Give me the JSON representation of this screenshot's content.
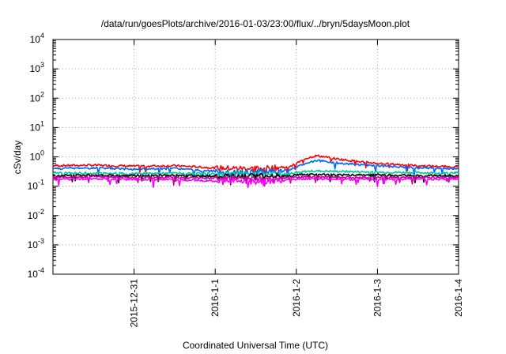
{
  "chart_data": {
    "type": "line",
    "title": "/data/run/goesPlots/archive/2016-01-03/23:00/flux/../bryn/5daysMoon.plot",
    "xlabel": "Coordinated Universal Time (UTC)",
    "ylabel": "cSv/day",
    "x_range": [
      "2015-12-30T00:00",
      "2016-01-04T00:00"
    ],
    "x_ticks": [
      "2015-12-31",
      "2016-1-1",
      "2016-1-2",
      "2016-1-3",
      "2016-1-4"
    ],
    "x_tick_dates": [
      "2015-12-31T00:00",
      "2016-01-01T00:00",
      "2016-01-02T00:00",
      "2016-01-03T00:00",
      "2016-01-04T00:00"
    ],
    "y_scale": "log",
    "ylim": [
      0.0001,
      10000
    ],
    "y_tick_exponents": [
      -4,
      -3,
      -2,
      -1,
      0,
      1,
      2,
      3,
      4
    ],
    "y_tick_base": "10",
    "grid": true,
    "series": [
      {
        "color": "#ff0000",
        "x": [
          "2015-12-30T00:00",
          "2015-12-30T12:00",
          "2015-12-31T00:00",
          "2015-12-31T12:00",
          "2016-01-01T00:00",
          "2016-01-01T12:00",
          "2016-01-01T22:00",
          "2016-01-02T00:00",
          "2016-01-02T03:00",
          "2016-01-02T06:00",
          "2016-01-02T12:00",
          "2016-01-02T18:00",
          "2016-01-03T00:00",
          "2016-01-03T12:00",
          "2016-01-04T00:00"
        ],
        "y": [
          0.5,
          0.52,
          0.48,
          0.5,
          0.42,
          0.4,
          0.45,
          0.6,
          0.9,
          1.1,
          0.85,
          0.7,
          0.6,
          0.5,
          0.45
        ]
      },
      {
        "color": "#0066ff",
        "x": [
          "2015-12-30T00:00",
          "2015-12-30T12:00",
          "2015-12-31T00:00",
          "2015-12-31T12:00",
          "2016-01-01T00:00",
          "2016-01-01T12:00",
          "2016-01-01T22:00",
          "2016-01-02T00:00",
          "2016-01-02T03:00",
          "2016-01-02T06:00",
          "2016-01-02T12:00",
          "2016-01-02T18:00",
          "2016-01-03T00:00",
          "2016-01-03T12:00",
          "2016-01-04T00:00"
        ],
        "y": [
          0.4,
          0.42,
          0.38,
          0.4,
          0.32,
          0.3,
          0.35,
          0.45,
          0.62,
          0.75,
          0.62,
          0.55,
          0.5,
          0.42,
          0.4
        ]
      },
      {
        "color": "#00c896",
        "x": [
          "2015-12-30T00:00",
          "2015-12-30T12:00",
          "2015-12-31T00:00",
          "2015-12-31T12:00",
          "2016-01-01T00:00",
          "2016-01-01T12:00",
          "2016-01-01T22:00",
          "2016-01-02T00:00",
          "2016-01-02T03:00",
          "2016-01-02T06:00",
          "2016-01-02T12:00",
          "2016-01-02T18:00",
          "2016-01-03T00:00",
          "2016-01-03T12:00",
          "2016-01-04T00:00"
        ],
        "y": [
          0.28,
          0.28,
          0.27,
          0.28,
          0.26,
          0.25,
          0.26,
          0.3,
          0.32,
          0.33,
          0.32,
          0.31,
          0.3,
          0.29,
          0.28
        ]
      },
      {
        "color": "#000000",
        "x": [
          "2015-12-30T00:00",
          "2015-12-30T12:00",
          "2015-12-31T00:00",
          "2015-12-31T12:00",
          "2016-01-01T00:00",
          "2016-01-01T12:00",
          "2016-01-01T22:00",
          "2016-01-02T00:00",
          "2016-01-02T03:00",
          "2016-01-02T06:00",
          "2016-01-02T12:00",
          "2016-01-02T18:00",
          "2016-01-03T00:00",
          "2016-01-03T12:00",
          "2016-01-04T00:00"
        ],
        "y": [
          0.23,
          0.24,
          0.23,
          0.23,
          0.22,
          0.22,
          0.22,
          0.24,
          0.25,
          0.25,
          0.24,
          0.24,
          0.24,
          0.23,
          0.23
        ]
      },
      {
        "color": "#cc0099",
        "x": [
          "2015-12-30T00:00",
          "2015-12-30T12:00",
          "2015-12-31T00:00",
          "2015-12-31T12:00",
          "2016-01-01T00:00",
          "2016-01-01T12:00",
          "2016-01-01T22:00",
          "2016-01-02T00:00",
          "2016-01-02T03:00",
          "2016-01-02T06:00",
          "2016-01-02T12:00",
          "2016-01-02T18:00",
          "2016-01-03T00:00",
          "2016-01-03T12:00",
          "2016-01-04T00:00"
        ],
        "y": [
          0.2,
          0.21,
          0.2,
          0.2,
          0.19,
          0.18,
          0.19,
          0.2,
          0.21,
          0.21,
          0.2,
          0.2,
          0.2,
          0.2,
          0.2
        ]
      },
      {
        "color": "#ff00ff",
        "x": [
          "2015-12-30T00:00",
          "2015-12-30T12:00",
          "2015-12-31T00:00",
          "2015-12-31T12:00",
          "2016-01-01T00:00",
          "2016-01-01T12:00",
          "2016-01-01T22:00",
          "2016-01-02T00:00",
          "2016-01-02T03:00",
          "2016-01-02T06:00",
          "2016-01-02T12:00",
          "2016-01-02T18:00",
          "2016-01-03T00:00",
          "2016-01-03T12:00",
          "2016-01-04T00:00"
        ],
        "y": [
          0.17,
          0.18,
          0.17,
          0.17,
          0.15,
          0.14,
          0.16,
          0.17,
          0.18,
          0.18,
          0.17,
          0.17,
          0.17,
          0.17,
          0.17
        ]
      }
    ]
  }
}
